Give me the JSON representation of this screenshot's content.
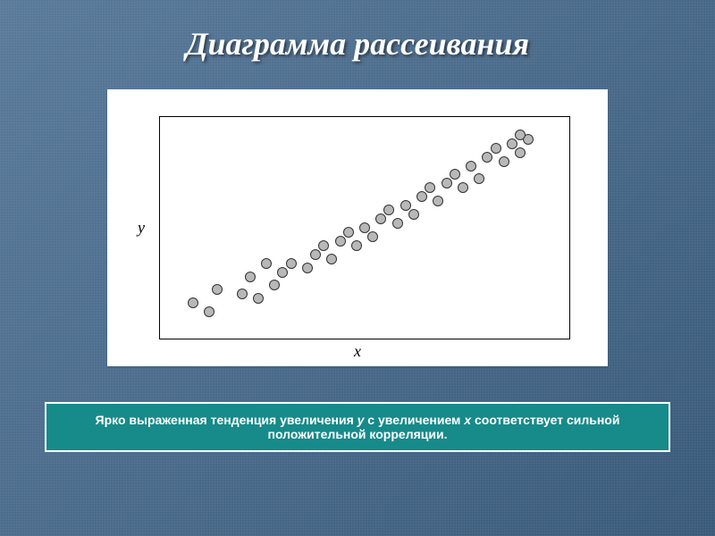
{
  "slide": {
    "title": "Диаграмма рассеивания",
    "title_fontsize": 36,
    "title_color": "#ffffff",
    "background_color": "#4a6a8a"
  },
  "scatter": {
    "type": "scatter",
    "xlabel": "x",
    "ylabel": "y",
    "label_fontsize": 18,
    "label_color": "#000000",
    "plot_background": "#ffffff",
    "plot_border_color": "#000000",
    "xlim": [
      0,
      100
    ],
    "ylim": [
      0,
      100
    ],
    "marker_size": 12,
    "marker_fill": "#b8b8b8",
    "marker_stroke": "#333333",
    "points": [
      [
        8,
        16
      ],
      [
        12,
        12
      ],
      [
        14,
        22
      ],
      [
        20,
        20
      ],
      [
        24,
        18
      ],
      [
        22,
        28
      ],
      [
        28,
        24
      ],
      [
        30,
        30
      ],
      [
        26,
        34
      ],
      [
        32,
        34
      ],
      [
        36,
        32
      ],
      [
        38,
        38
      ],
      [
        40,
        42
      ],
      [
        42,
        36
      ],
      [
        44,
        44
      ],
      [
        46,
        48
      ],
      [
        48,
        42
      ],
      [
        50,
        50
      ],
      [
        52,
        46
      ],
      [
        54,
        54
      ],
      [
        56,
        58
      ],
      [
        58,
        52
      ],
      [
        60,
        60
      ],
      [
        62,
        56
      ],
      [
        64,
        64
      ],
      [
        66,
        68
      ],
      [
        68,
        62
      ],
      [
        70,
        70
      ],
      [
        72,
        74
      ],
      [
        74,
        68
      ],
      [
        76,
        78
      ],
      [
        78,
        72
      ],
      [
        80,
        82
      ],
      [
        82,
        86
      ],
      [
        84,
        80
      ],
      [
        86,
        88
      ],
      [
        88,
        84
      ],
      [
        90,
        90
      ],
      [
        88,
        92
      ]
    ]
  },
  "caption": {
    "prefix": "Ярко выраженная тенденция увеличения ",
    "var1": "y",
    "mid1": " с увеличением ",
    "var2": "x",
    "suffix": " соответствует сильной положительной корреляции.",
    "background": "#178a8a",
    "border_color": "#ffffff",
    "text_color": "#ffffff",
    "fontsize": 14
  }
}
